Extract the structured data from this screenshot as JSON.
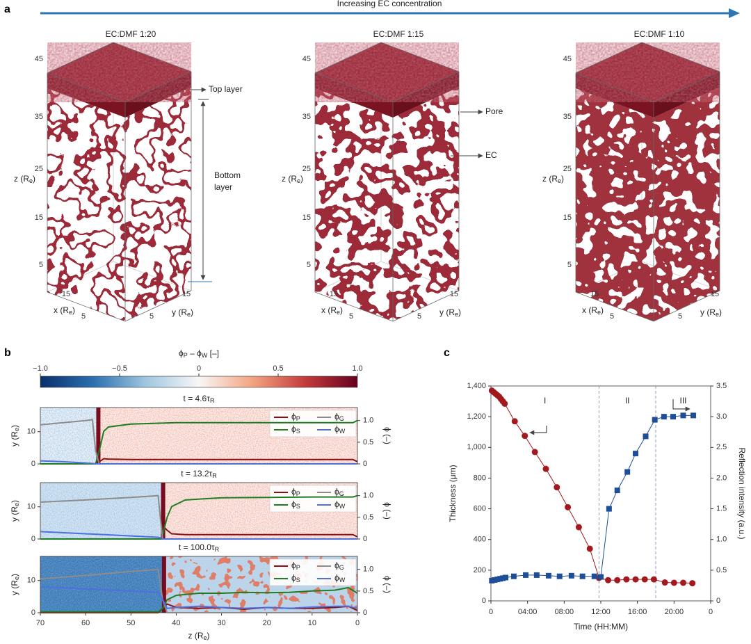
{
  "panel_labels": [
    "a",
    "b",
    "c"
  ],
  "panel_a": {
    "arrow_label": "Increasing EC concentration",
    "cube_titles": [
      "EC:DMF 1:20",
      "EC:DMF 1:15",
      "EC:DMF 1:10"
    ],
    "z_ticks": [
      "45",
      "35",
      "25",
      "15",
      "5"
    ],
    "x_ticks": [
      "15",
      "5"
    ],
    "y_ticks": [
      "5",
      "15"
    ],
    "z_label": [
      "z (R",
      "e",
      ")"
    ],
    "x_label": [
      "x (R",
      "e",
      ")"
    ],
    "y_label": [
      "y (R",
      "e",
      ")"
    ],
    "annotations": {
      "top_layer": "Top layer",
      "bottom_layer": [
        "Bottom",
        "layer"
      ],
      "pore": "Pore",
      "ec": "EC"
    }
  },
  "chart_data": [
    {
      "type": "colorbar",
      "title": [
        "ϕ",
        "P",
        " – ϕ",
        "W",
        " [–]"
      ],
      "xlim": [
        -1,
        1
      ],
      "xticks": [
        {
          "value": -1,
          "label": "−1.0"
        },
        {
          "value": -0.5,
          "label": "−0.5"
        },
        0,
        0.5,
        {
          "value": 1,
          "label": "1.0"
        }
      ],
      "colormap": [
        "#08306b",
        "#2c6fb0",
        "#9fc7e0",
        "#f7f7f7",
        "#f4a582",
        "#c43c3c",
        "#67001f"
      ]
    },
    {
      "type": "line",
      "title": [
        "t = 4.6τ",
        "R"
      ],
      "front_z": 57.5,
      "x": [
        70,
        65,
        60,
        58.5,
        57.8,
        57,
        56,
        55,
        50,
        40,
        30,
        20,
        10,
        3,
        1,
        0
      ],
      "xlim": [
        70,
        0
      ],
      "ylabel": [
        "y (R",
        "e",
        ")"
      ],
      "ylim": [
        0,
        17.5
      ],
      "yticks": [
        0,
        10
      ],
      "y2label": "ϕ (–)",
      "y2lim": [
        0,
        1.3
      ],
      "y2ticks": [
        0,
        0.5,
        {
          "value": 1,
          "label": "1.0"
        }
      ],
      "series": [
        {
          "name": [
            "ϕ",
            "P"
          ],
          "color": "#8b0f12",
          "axis": "y2",
          "values": [
            0,
            0,
            0,
            0,
            0,
            0.05,
            0.12,
            0.11,
            0.1,
            0.1,
            0.1,
            0.1,
            0.1,
            0.1,
            0.1,
            0.05
          ]
        },
        {
          "name": [
            "ϕ",
            "S"
          ],
          "color": "#1e7d22",
          "axis": "y2",
          "values": [
            0,
            0,
            0,
            0,
            0,
            0.3,
            0.75,
            0.85,
            0.92,
            0.95,
            0.95,
            0.95,
            0.95,
            0.95,
            0.95,
            1.0
          ]
        },
        {
          "name": [
            "ϕ",
            "G"
          ],
          "color": "#8c8c8c",
          "axis": "y2",
          "values": [
            0.9,
            0.95,
            1.0,
            1.02,
            0.3,
            0,
            0,
            0,
            0,
            0,
            0,
            0,
            0,
            0,
            0,
            0
          ]
        },
        {
          "name": [
            "ϕ",
            "W"
          ],
          "color": "#4d6fe0",
          "axis": "y2",
          "values": [
            0.07,
            0.05,
            0.02,
            0.01,
            0,
            0,
            0,
            0,
            0,
            0,
            0,
            0,
            0,
            0,
            0,
            0
          ]
        }
      ]
    },
    {
      "type": "line",
      "title": [
        "t = 13.2τ",
        "R"
      ],
      "front_z": 43.2,
      "x": [
        70,
        60,
        50,
        44,
        43.3,
        43,
        42,
        41,
        38,
        30,
        20,
        10,
        3,
        1,
        0
      ],
      "xlim": [
        70,
        0
      ],
      "ylabel": [
        "y (R",
        "e",
        ")"
      ],
      "ylim": [
        0,
        17.5
      ],
      "yticks": [
        0,
        10
      ],
      "y2label": "ϕ (–)",
      "y2lim": [
        0,
        1.3
      ],
      "y2ticks": [
        0,
        0.5,
        {
          "value": 1,
          "label": "1.0"
        }
      ],
      "series": [
        {
          "name": [
            "ϕ",
            "P"
          ],
          "color": "#8b0f12",
          "axis": "y2",
          "values": [
            0,
            0,
            0,
            0,
            0,
            0.3,
            0.2,
            0.12,
            0.1,
            0.1,
            0.1,
            0.1,
            0.1,
            0.1,
            0.05
          ]
        },
        {
          "name": [
            "ϕ",
            "S"
          ],
          "color": "#1e7d22",
          "axis": "y2",
          "values": [
            0,
            0,
            0,
            0,
            0,
            0.1,
            0.5,
            0.75,
            0.9,
            0.95,
            0.96,
            0.97,
            0.97,
            0.97,
            1.0
          ]
        },
        {
          "name": [
            "ϕ",
            "G"
          ],
          "color": "#8c8c8c",
          "axis": "y2",
          "values": [
            0.85,
            0.9,
            0.96,
            1.0,
            0.3,
            0,
            0,
            0,
            0,
            0,
            0,
            0,
            0,
            0,
            0
          ]
        },
        {
          "name": [
            "ϕ",
            "W"
          ],
          "color": "#4d6fe0",
          "axis": "y2",
          "values": [
            0.17,
            0.12,
            0.07,
            0.04,
            0.02,
            0,
            0,
            0,
            0,
            0,
            0,
            0,
            0,
            0,
            0
          ]
        }
      ]
    },
    {
      "type": "line",
      "title": [
        "t = 100.0τ",
        "R"
      ],
      "front_z": 43,
      "x": [
        70,
        60,
        50,
        44,
        43,
        42,
        40,
        35,
        30,
        25,
        20,
        15,
        10,
        5,
        2,
        0
      ],
      "xlim": [
        70,
        0
      ],
      "xlabel": [
        "z (R",
        "e",
        ")"
      ],
      "xticks": [
        70,
        60,
        50,
        40,
        30,
        20,
        10,
        0
      ],
      "ylabel": [
        "y (R",
        "e",
        ")"
      ],
      "ylim": [
        0,
        17.5
      ],
      "yticks": [
        0,
        10
      ],
      "y2label": "ϕ (–)",
      "y2lim": [
        0,
        1.3
      ],
      "y2ticks": [
        0,
        0.5,
        {
          "value": 1,
          "label": "1.0"
        }
      ],
      "series": [
        {
          "name": [
            "ϕ",
            "P"
          ],
          "color": "#8b0f12",
          "axis": "y2",
          "values": [
            0,
            0,
            0,
            0,
            0.1,
            0.2,
            0.12,
            0.1,
            0.12,
            0.08,
            0.12,
            0.1,
            0.1,
            0.12,
            0.15,
            0.05
          ]
        },
        {
          "name": [
            "ϕ",
            "S"
          ],
          "color": "#1e7d22",
          "axis": "y2",
          "values": [
            0.02,
            0.02,
            0.02,
            0.02,
            0.1,
            0.3,
            0.4,
            0.45,
            0.45,
            0.47,
            0.46,
            0.47,
            0.5,
            0.52,
            0.58,
            0.45
          ]
        },
        {
          "name": [
            "ϕ",
            "G"
          ],
          "color": "#8c8c8c",
          "axis": "y2",
          "values": [
            0.78,
            0.86,
            0.95,
            1.0,
            0.3,
            0,
            0,
            0,
            0,
            0,
            0,
            0,
            0,
            0,
            0,
            0
          ]
        },
        {
          "name": [
            "ϕ",
            "W"
          ],
          "color": "#4d6fe0",
          "axis": "y2",
          "values": [
            0.6,
            0.55,
            0.5,
            0.47,
            0.3,
            0.1,
            0.12,
            0.15,
            0.12,
            0.1,
            0.12,
            0.1,
            0.13,
            0.15,
            0.15,
            0.1
          ]
        }
      ]
    },
    {
      "type": "line",
      "xlabel": "Time (HH:MM)",
      "ylabel": "Thickness (μm)",
      "y2label": "Reflection intensity (a.u.)",
      "xlim": [
        0,
        24
      ],
      "xticks": [
        0,
        {
          "value": 4,
          "label": "04:00"
        },
        {
          "value": 8,
          "label": "08:00"
        },
        {
          "value": 12,
          "label": "12:00"
        },
        {
          "value": 16,
          "label": "16:00"
        },
        {
          "value": 20,
          "label": "20:00"
        },
        {
          "value": 24,
          "label": "0"
        }
      ],
      "ylim": [
        0,
        1400
      ],
      "yticks": [
        0,
        200,
        400,
        600,
        800,
        {
          "value": 1000,
          "label": "1,000"
        },
        {
          "value": 1200,
          "label": "1,200"
        },
        {
          "value": 1400,
          "label": "1,400"
        }
      ],
      "y2lim": [
        0,
        3.5
      ],
      "y2ticks": [
        0,
        0.5,
        {
          "value": 1,
          "label": "1.0"
        },
        1.5,
        {
          "value": 2,
          "label": "2.0"
        },
        2.5,
        {
          "value": 3,
          "label": "3.0"
        },
        3.5
      ],
      "region_bounds": [
        11.8,
        18
      ],
      "region_labels": [
        "I",
        "II",
        "III"
      ],
      "series": [
        {
          "color": "#a3191e",
          "marker": "circle",
          "x": [
            0.1,
            0.3,
            0.5,
            0.7,
            0.9,
            1.1,
            1.3,
            1.5,
            2.6,
            3.7,
            4.8,
            6.0,
            7.2,
            8.4,
            9.6,
            10.8,
            11.8,
            12.8,
            13.8,
            14.8,
            15.8,
            16.8,
            17.8,
            19.0,
            20.0,
            21.0,
            22.0
          ],
          "values": [
            1370,
            1360,
            1350,
            1340,
            1330,
            1315,
            1300,
            1285,
            1170,
            1075,
            970,
            860,
            740,
            610,
            480,
            340,
            150,
            135,
            135,
            140,
            140,
            140,
            140,
            120,
            118,
            118,
            115
          ]
        },
        {
          "color": "#1f4e99",
          "marker": "square",
          "axis": "y2",
          "x": [
            0.1,
            0.4,
            0.7,
            1.0,
            1.3,
            1.6,
            2.5,
            3.8,
            5.0,
            6.3,
            7.5,
            8.8,
            10.0,
            11.3,
            12.0,
            12.9,
            13.8,
            14.9,
            15.8,
            16.9,
            17.9,
            18.9,
            19.9,
            21.0,
            22.1
          ],
          "values": [
            0.33,
            0.34,
            0.35,
            0.36,
            0.37,
            0.38,
            0.4,
            0.42,
            0.42,
            0.41,
            0.4,
            0.41,
            0.4,
            0.4,
            0.39,
            1.5,
            1.8,
            2.1,
            2.4,
            2.68,
            2.95,
            3.0,
            3.0,
            3.02,
            3.02
          ]
        }
      ]
    }
  ]
}
